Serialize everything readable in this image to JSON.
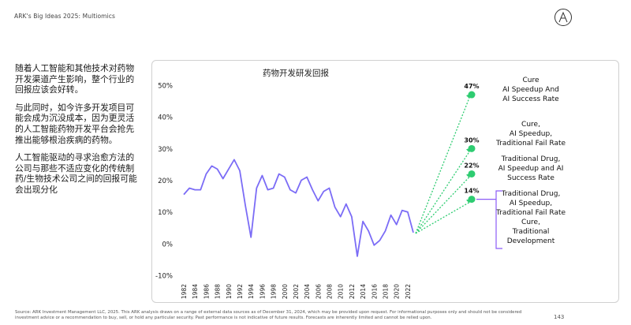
{
  "header": {
    "title": "ARK's Big Ideas 2025: Multiomics",
    "logo_icon": "ark-logo-icon"
  },
  "intro": {
    "paragraphs": [
      "随着人工智能和其他技术对药物开发渠道产生影响，整个行业的回报应该会好转。",
      "与此同时，如今许多开发项目可能会成为沉没成本，因为更灵活的人工智能药物开发平台会抢先推出能够根治疾病的药物。",
      "人工智能驱动的寻求治愈方法的公司与那些不适应变化的传统制药/生物技术公司之间的回报可能会出现分化"
    ]
  },
  "chart_data": {
    "type": "line",
    "title": "药物开发研发回报",
    "xlabel": "",
    "ylabel": "",
    "ylim": [
      -10,
      50
    ],
    "yticks": [
      -10,
      0,
      10,
      20,
      30,
      40,
      50
    ],
    "ytick_labels": [
      "-10%",
      "0%",
      "10%",
      "20%",
      "30%",
      "40%",
      "50%"
    ],
    "xticks": [
      1982,
      1984,
      1986,
      1988,
      1990,
      1992,
      1994,
      1996,
      1998,
      2000,
      2002,
      2004,
      2006,
      2008,
      2010,
      2012,
      2014,
      2016,
      2018,
      2020,
      2022
    ],
    "grid": false,
    "line_color": "#7b6cf6",
    "series": [
      {
        "x": [
          1982,
          1983,
          1984,
          1985,
          1986,
          1987,
          1988,
          1989,
          1990,
          1991,
          1992,
          1993,
          1994,
          1995,
          1996,
          1997,
          1998,
          1999,
          2000,
          2001,
          2002,
          2003,
          2004,
          2005,
          2006,
          2007,
          2008,
          2009,
          2010,
          2011,
          2012,
          2013,
          2014,
          2015,
          2016,
          2017,
          2018,
          2019,
          2020,
          2021,
          2022,
          2023
        ],
        "values": [
          15.5,
          17.5,
          17,
          17,
          22,
          24.5,
          23.5,
          20.5,
          23.5,
          26.5,
          23,
          12,
          2,
          17.5,
          21.5,
          17,
          17.5,
          22,
          21,
          17,
          16,
          20,
          21,
          17,
          13.5,
          16.5,
          17.5,
          11.5,
          8.5,
          12.5,
          8.5,
          -4,
          7,
          4,
          -0.5,
          1,
          4,
          9,
          6,
          10.5,
          10,
          3.5
        ]
      }
    ],
    "scenarios": {
      "origin": {
        "x": 2023,
        "y": 3.5
      },
      "line_color": "#2ecc71",
      "points": [
        {
          "value": 47,
          "label": "47%",
          "text": [
            "Cure",
            "AI Speedup And",
            "AI Success Rate"
          ]
        },
        {
          "value": 30,
          "label": "30%",
          "text": [
            "Cure,",
            "AI Speedup,",
            "Traditional Fail Rate"
          ]
        },
        {
          "value": 22,
          "label": "22%",
          "text": [
            "Traditional Drug,",
            "AI Speedup and AI",
            "Success Rate"
          ]
        },
        {
          "value": 14,
          "label": "14%",
          "text": [
            "Traditional Drug,",
            "AI Speedup,",
            "Traditional Fail Rate",
            "Cure,",
            "Traditional",
            "Development"
          ]
        }
      ],
      "bracket_color": "#8b5cf6"
    }
  },
  "footer": {
    "source": "Source: ARK Investment Management LLC, 2025. This ARK analysis draws on a range of external data sources as of December 31, 2024, which may be provided upon request. For informational purposes only and should not be considered investment advice or a recommendation to buy, sell, or hold any particular security. Past performance is not indicative of future results. Forecasts are inherently limited and cannot be relied upon.",
    "page_number": "143"
  }
}
